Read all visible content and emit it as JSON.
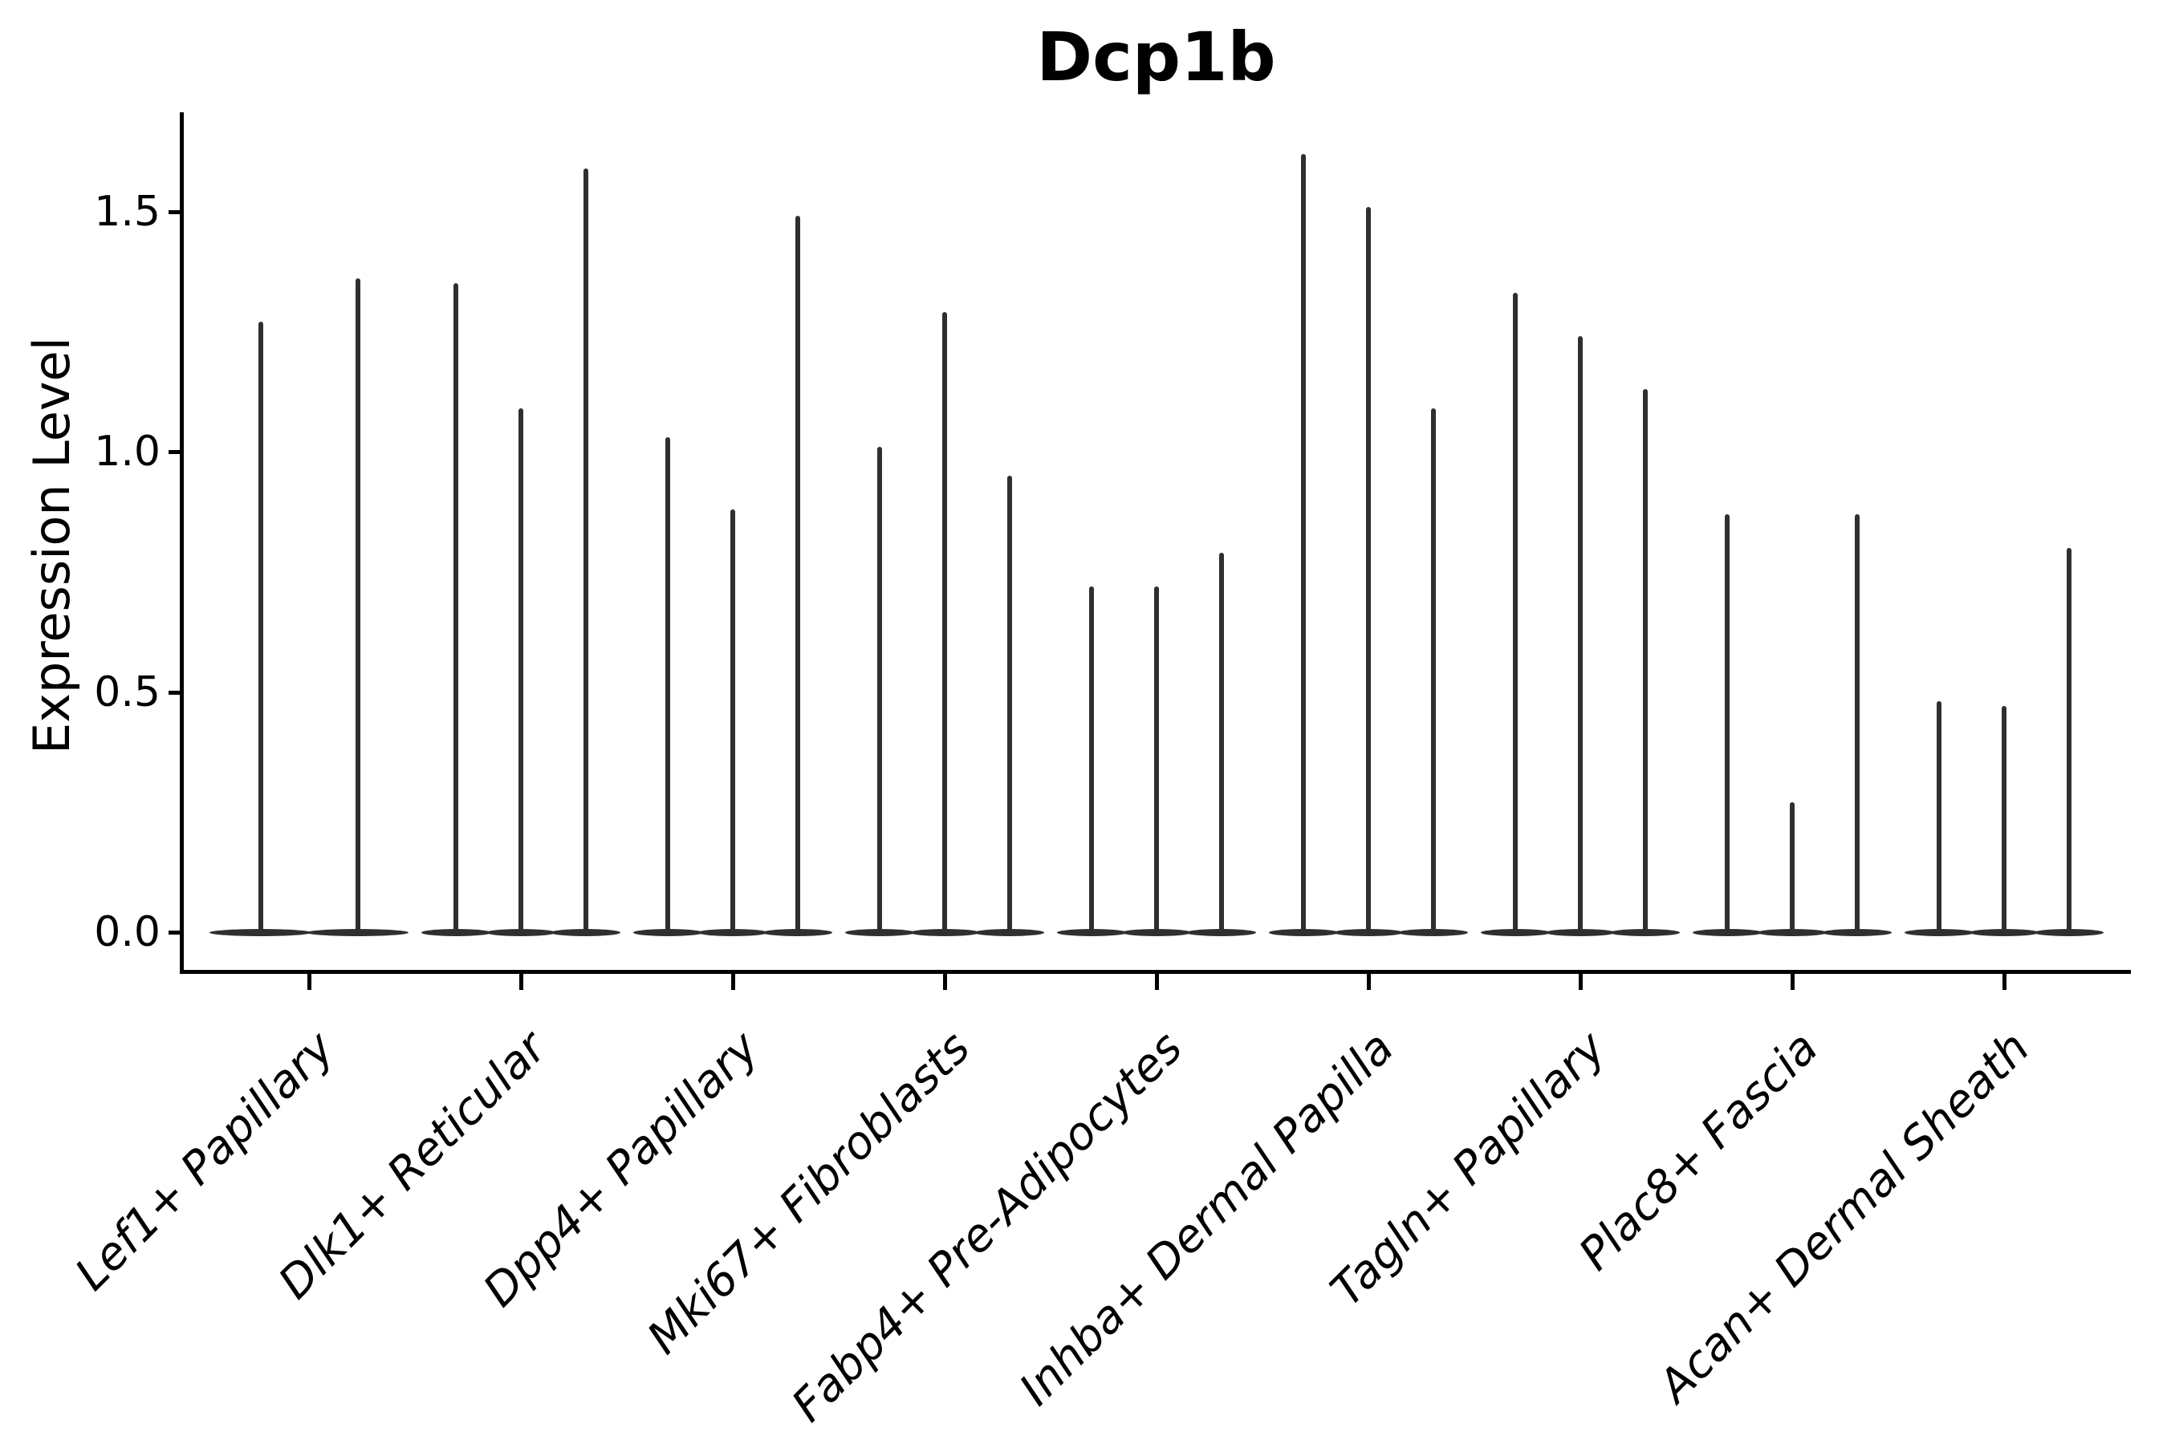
{
  "chart_data": {
    "type": "violin",
    "title": "Dcp1b",
    "xlabel": "",
    "ylabel": "Expression Level",
    "yticks": [
      0.0,
      0.5,
      1.0,
      1.5
    ],
    "ytick_labels": [
      "0.0",
      "0.5",
      "1.0",
      "1.5"
    ],
    "ylim": [
      -0.08,
      1.71
    ],
    "grid": false,
    "legend": "none",
    "background_color": "#ffffff",
    "violin_color": "#2f2f2f",
    "axis_color": "#000000",
    "description": "Violin plot of Dcp1b expression level per fibroblast subtype; each group contains multiple very thin violins whose mass sits at 0 with a narrow spike up to the listed maximum expression value.",
    "groups": [
      {
        "label": "Lef1+ Papillary",
        "violin_maxima": [
          1.27,
          1.36
        ]
      },
      {
        "label": "Dlk1+ Reticular",
        "violin_maxima": [
          1.35,
          1.09,
          1.59
        ]
      },
      {
        "label": "Dpp4+ Papillary",
        "violin_maxima": [
          1.03,
          0.88,
          1.49
        ]
      },
      {
        "label": "Mki67+ Fibroblasts",
        "violin_maxima": [
          1.01,
          1.29,
          0.95
        ]
      },
      {
        "label": "Fabp4+ Pre-Adipocytes",
        "violin_maxima": [
          0.72,
          0.72,
          0.79
        ]
      },
      {
        "label": "Inhba+ Dermal Papilla",
        "violin_maxima": [
          1.62,
          1.51,
          1.09
        ]
      },
      {
        "label": "Tagln+ Papillary",
        "violin_maxima": [
          1.33,
          1.24,
          1.13
        ]
      },
      {
        "label": "Plac8+ Fascia",
        "violin_maxima": [
          0.87,
          0.27,
          0.87
        ]
      },
      {
        "label": "Acan+ Dermal Sheath",
        "violin_maxima": [
          0.48,
          0.47,
          0.8
        ]
      }
    ]
  }
}
